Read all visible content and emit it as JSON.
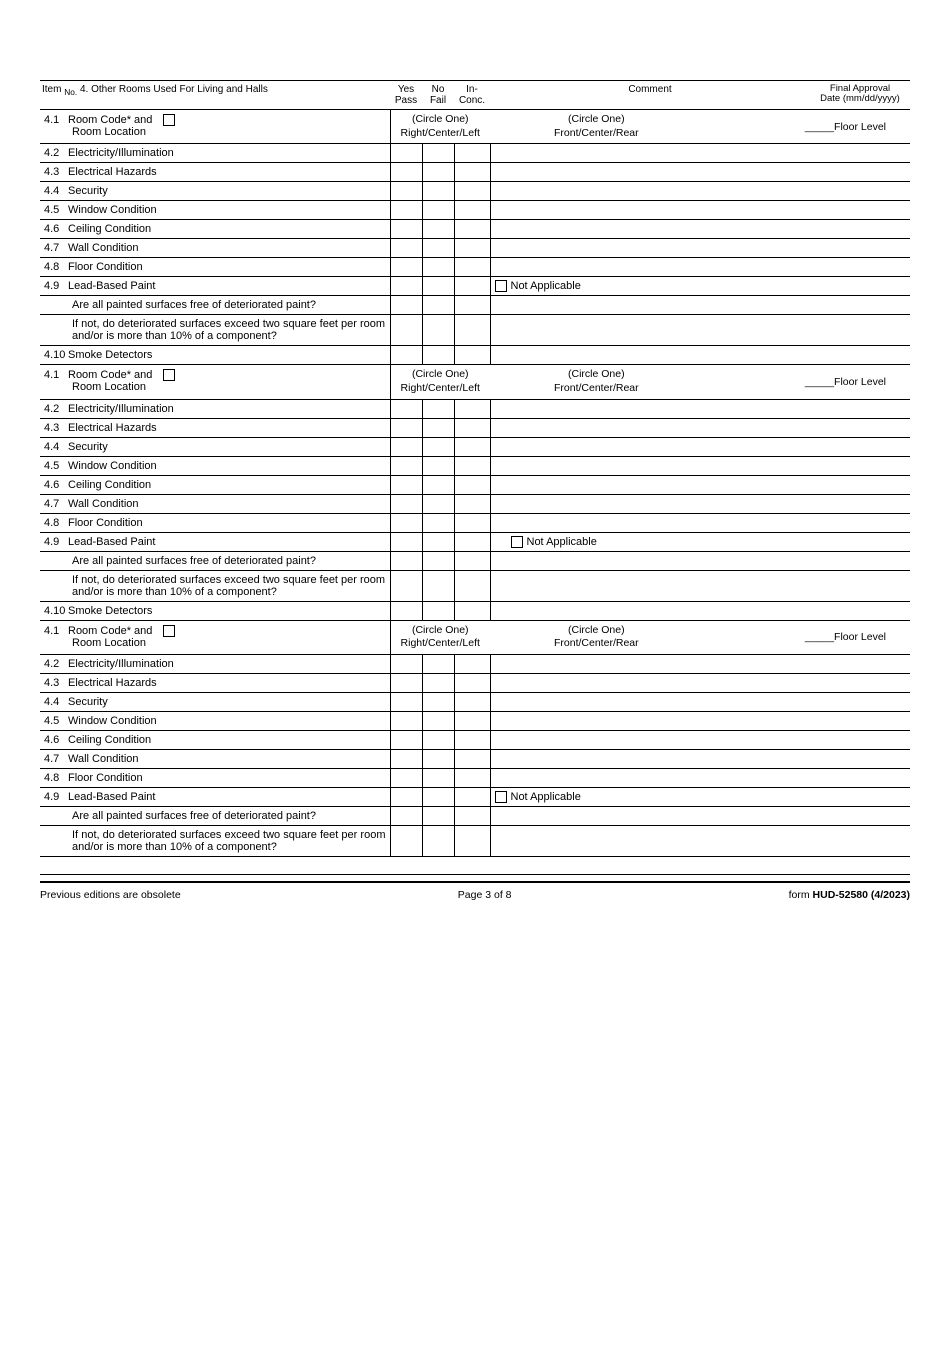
{
  "header": {
    "item_no_label": "Item",
    "no_sub": "No.",
    "section_title": "4. Other Rooms Used For Living and Halls",
    "yes_pass": "Yes\nPass",
    "no_fail": "No\nFail",
    "in_conc": "In-\nConc.",
    "comment": "Comment",
    "final_approval": "Final Approval\nDate (mm/dd/yyyy)"
  },
  "location_row": {
    "room_code_label": "Room Code* and",
    "room_location_label": "Room Location",
    "circle_one": "(Circle One)",
    "rcl": "Right/Center/Left",
    "fcr": "Front/Center/Rear",
    "floor_level": "_____Floor Level"
  },
  "items": [
    {
      "num": "4.2",
      "label": "Electricity/Illumination"
    },
    {
      "num": "4.3",
      "label": "Electrical Hazards"
    },
    {
      "num": "4.4",
      "label": "Security"
    },
    {
      "num": "4.5",
      "label": "Window Condition"
    },
    {
      "num": "4.6",
      "label": "Ceiling Condition"
    },
    {
      "num": "4.7",
      "label": "Wall Condition"
    },
    {
      "num": "4.8",
      "label": "Floor Condition"
    }
  ],
  "lead_paint": {
    "num": "4.9",
    "label": "Lead-Based Paint",
    "na": "Not Applicable",
    "q1": "Are all painted surfaces free of deteriorated paint?",
    "q2": "If not, do deteriorated surfaces exceed two square feet per room and/or is more than 10% of a component?"
  },
  "smoke": {
    "num": "4.10",
    "label": "Smoke Detectors"
  },
  "repeat_loc_num": "4.1",
  "footer": {
    "left": "Previous editions are obsolete",
    "center": "Page 3 of 8",
    "right_prefix": "form ",
    "right_bold": "HUD-52580 (4/2023)"
  }
}
